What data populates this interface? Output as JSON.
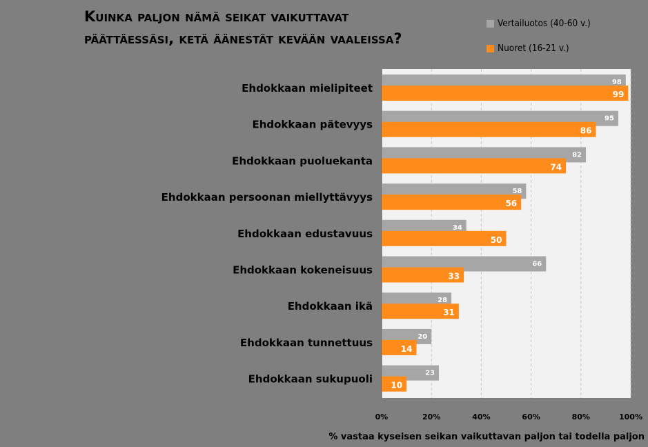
{
  "title_lines": [
    "Kuinka paljon nämä seikat vaikuttavat",
    "päättäessäsi, ketä äänestät kevään vaaleissa?"
  ],
  "chart_data": {
    "type": "bar",
    "orientation": "horizontal",
    "title": "Kuinka paljon nämä seikat vaikuttavat päättäessäsi, ketä äänestät kevään vaaleissa?",
    "categories": [
      "Ehdokkaan mielipiteet",
      "Ehdokkaan pätevyys",
      "Ehdokkaan puoluekanta",
      "Ehdokkaan persoonan miellyttävyys",
      "Ehdokkaan edustavuus",
      "Ehdokkaan kokeneisuus",
      "Ehdokkaan ikä",
      "Ehdokkaan tunnettuus",
      "Ehdokkaan sukupuoli"
    ],
    "series": [
      {
        "name": "Vertailuotos (40-60 v.)",
        "values": [
          98,
          95,
          82,
          58,
          34,
          66,
          28,
          20,
          23
        ]
      },
      {
        "name": "Nuoret (16-21 v.)",
        "values": [
          99,
          86,
          74,
          56,
          50,
          33,
          31,
          14,
          10
        ]
      }
    ],
    "xlabel": "% vastaa kyseisen seikan vaikuttavan paljon tai todella paljon",
    "xlim": [
      0,
      100
    ],
    "xticks": [
      0,
      20,
      40,
      60,
      80,
      100
    ],
    "xtick_labels": [
      "0%",
      "20%",
      "40%",
      "60%",
      "80%",
      "100%"
    ],
    "grid": true,
    "legend_position": "top-right",
    "colors": {
      "series": [
        "#a6a6a6",
        "#ff8c1a"
      ],
      "plot_background": "#f2f2f2",
      "page_background": "#7f7f7f"
    }
  }
}
